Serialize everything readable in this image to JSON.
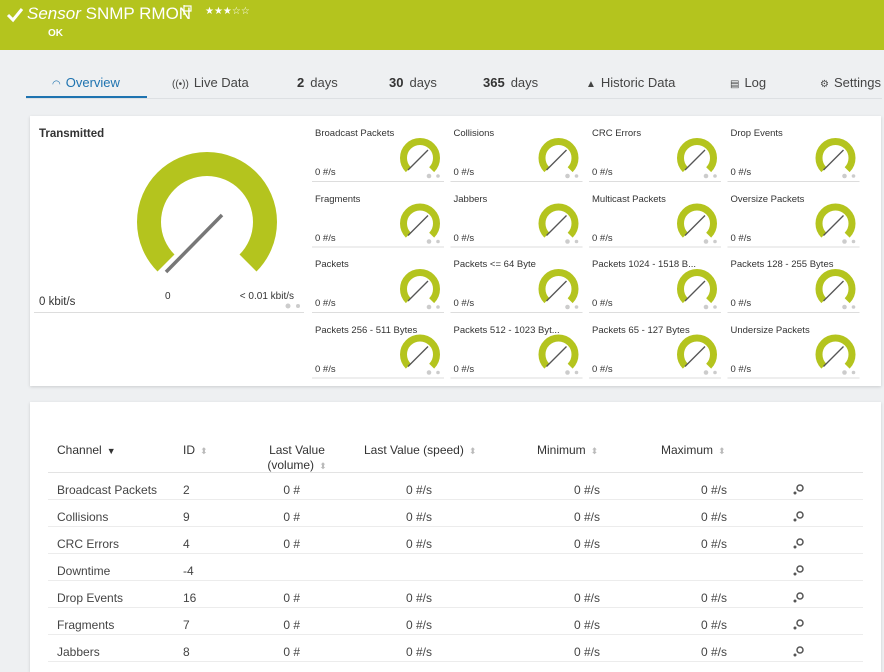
{
  "header": {
    "title_prefix": "Sensor",
    "title": "SNMP RMON",
    "status": "OK"
  },
  "tabs": [
    {
      "label": "Overview"
    },
    {
      "label": "Live Data"
    },
    {
      "num": "2",
      "unit": "days"
    },
    {
      "num": "30",
      "unit": "days"
    },
    {
      "num": "365",
      "unit": "days"
    },
    {
      "label": "Historic Data"
    },
    {
      "label": "Log"
    },
    {
      "label": "Settings"
    }
  ],
  "main_gauge": {
    "title": "Transmitted",
    "value": "0 kbit/s",
    "min": "0",
    "max": "< 0.01 kbit/s"
  },
  "gauges": [
    {
      "name": "Broadcast Packets",
      "value": "0 #/s"
    },
    {
      "name": "Collisions",
      "value": "0 #/s"
    },
    {
      "name": "CRC Errors",
      "value": "0 #/s"
    },
    {
      "name": "Drop Events",
      "value": "0 #/s"
    },
    {
      "name": "Fragments",
      "value": "0 #/s"
    },
    {
      "name": "Jabbers",
      "value": "0 #/s"
    },
    {
      "name": "Multicast Packets",
      "value": "0 #/s"
    },
    {
      "name": "Oversize Packets",
      "value": "0 #/s"
    },
    {
      "name": "Packets",
      "value": "0 #/s"
    },
    {
      "name": "Packets <= 64 Byte",
      "value": "0 #/s"
    },
    {
      "name": "Packets 1024 - 1518 B...",
      "value": "0 #/s"
    },
    {
      "name": "Packets 128 - 255 Bytes",
      "value": "0 #/s"
    },
    {
      "name": "Packets 256 - 511 Bytes",
      "value": "0 #/s"
    },
    {
      "name": "Packets 512 - 1023 Byt...",
      "value": "0 #/s"
    },
    {
      "name": "Packets 65 - 127 Bytes",
      "value": "0 #/s"
    },
    {
      "name": "Undersize Packets",
      "value": "0 #/s"
    }
  ],
  "table": {
    "columns": [
      "Channel",
      "ID",
      "Last Value (volume)",
      "Last Value (speed)",
      "Minimum",
      "Maximum"
    ],
    "rows": [
      {
        "channel": "Broadcast Packets",
        "id": "2",
        "volume": "0 #",
        "speed": "0 #/s",
        "min": "0 #/s",
        "max": "0 #/s"
      },
      {
        "channel": "Collisions",
        "id": "9",
        "volume": "0 #",
        "speed": "0 #/s",
        "min": "0 #/s",
        "max": "0 #/s"
      },
      {
        "channel": "CRC Errors",
        "id": "4",
        "volume": "0 #",
        "speed": "0 #/s",
        "min": "0 #/s",
        "max": "0 #/s"
      },
      {
        "channel": "Downtime",
        "id": "-4"
      },
      {
        "channel": "Drop Events",
        "id": "16",
        "volume": "0 #",
        "speed": "0 #/s",
        "min": "0 #/s",
        "max": "0 #/s"
      },
      {
        "channel": "Fragments",
        "id": "7",
        "volume": "0 #",
        "speed": "0 #/s",
        "min": "0 #/s",
        "max": "0 #/s"
      },
      {
        "channel": "Jabbers",
        "id": "8",
        "volume": "0 #",
        "speed": "0 #/s",
        "min": "0 #/s",
        "max": "0 #/s"
      }
    ]
  }
}
